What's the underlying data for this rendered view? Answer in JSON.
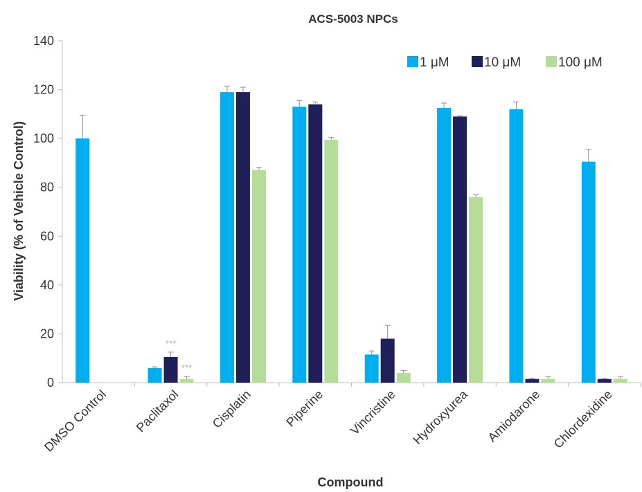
{
  "chart_data": {
    "type": "bar",
    "title": "ACS-5003 NPCs",
    "xlabel": "Compound",
    "ylabel": "Viability (% of Vehicle Control)",
    "ylim": [
      0,
      140
    ],
    "yticks": [
      0,
      20,
      40,
      60,
      80,
      100,
      120,
      140
    ],
    "grid": false,
    "legend_position": "top-right",
    "categories": [
      "DMSO Control",
      "Paclitaxol",
      "Cisplatin",
      "Piperine",
      "Vincristine",
      "Hydroxyurea",
      "Amiodarone",
      "Chlordexidine"
    ],
    "series": [
      {
        "name": "1 μM",
        "color": "#00AEEF",
        "values": [
          100,
          6,
          119,
          113,
          11.5,
          112.5,
          112,
          90.5
        ],
        "errors": [
          9.5,
          0.5,
          2.5,
          2.5,
          1.5,
          2,
          3,
          5
        ]
      },
      {
        "name": "10 μM",
        "color": "#1F1F5A",
        "values": [
          null,
          10.5,
          119,
          114,
          18,
          109,
          1.5,
          1.5
        ],
        "errors": [
          null,
          2,
          2,
          1,
          5.5,
          0.3,
          0.2,
          0.2
        ]
      },
      {
        "name": "100 μM",
        "color": "#B5DC98",
        "values": [
          null,
          1.5,
          87,
          99.5,
          4,
          76,
          1.5,
          1.5
        ],
        "errors": [
          null,
          1,
          1,
          1,
          1,
          1,
          1,
          1
        ]
      }
    ],
    "annotations": [
      {
        "text": "***",
        "category": "Paclitaxol",
        "series": "10 μM"
      },
      {
        "text": "***",
        "category": "Paclitaxol",
        "series": "100 μM"
      }
    ]
  }
}
